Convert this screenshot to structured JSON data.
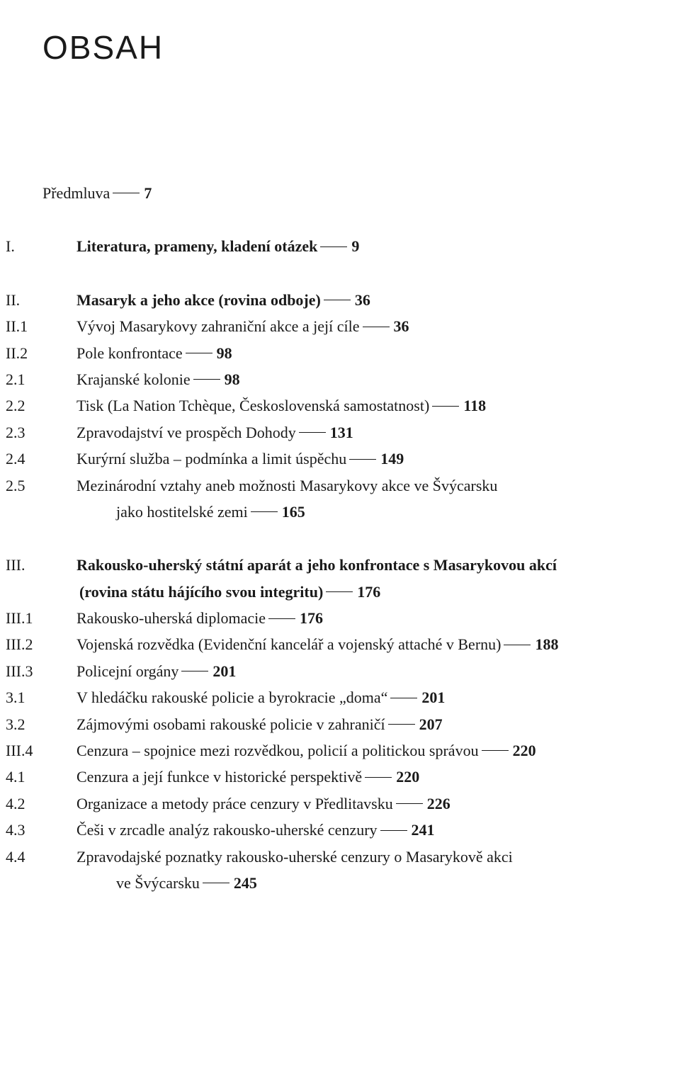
{
  "title": "OBSAH",
  "entries": [
    {
      "type": "line",
      "bold": false,
      "indent": 0,
      "num": "",
      "label": "Předmluva",
      "page": "7",
      "gapAfter": "large"
    },
    {
      "type": "line",
      "bold": true,
      "indent": 0,
      "num": "I.",
      "label": "Literatura, prameny, kladení otázek",
      "page": "9",
      "gapAfter": "large"
    },
    {
      "type": "line",
      "bold": true,
      "indent": 0,
      "num": "II.",
      "label": "Masaryk a jeho akce (rovina odboje)",
      "page": "36"
    },
    {
      "type": "line",
      "bold": false,
      "indent": 0,
      "num": "II.1",
      "label": "Vývoj Masarykovy zahraniční akce a její cíle",
      "page": "36"
    },
    {
      "type": "line",
      "bold": false,
      "indent": 0,
      "num": "II.2",
      "label": "Pole konfrontace",
      "page": "98"
    },
    {
      "type": "line",
      "bold": false,
      "indent": 1,
      "num": "2.1",
      "label": "Krajanské kolonie",
      "page": "98"
    },
    {
      "type": "line",
      "bold": false,
      "indent": 1,
      "num": "2.2",
      "label": "Tisk (La Nation Tchèque, Československá samostatnost)",
      "page": "118"
    },
    {
      "type": "line",
      "bold": false,
      "indent": 1,
      "num": "2.3",
      "label": "Zpravodajství ve prospěch Dohody",
      "page": "131"
    },
    {
      "type": "line",
      "bold": false,
      "indent": 1,
      "num": "2.4",
      "label": "Kurýrní služba – podmínka a limit úspěchu",
      "page": "149"
    },
    {
      "type": "wrap",
      "bold": false,
      "indent": 1,
      "num": "2.5",
      "label1": "Mezinárodní vztahy aneb možnosti Masarykovy akce ve Švýcarsku",
      "label2": "jako hostitelské zemi",
      "page": "165",
      "gapAfter": "large"
    },
    {
      "type": "wrapbold",
      "indent": 0,
      "num": "III.",
      "label1": "Rakousko-uherský státní aparát a jeho konfrontace s Masarykovou akcí",
      "label2": "(rovina státu hájícího svou integritu)",
      "page": "176"
    },
    {
      "type": "line",
      "bold": false,
      "indent": 0,
      "num": "III.1",
      "label": "Rakousko-uherská diplomacie",
      "page": "176"
    },
    {
      "type": "line",
      "bold": false,
      "indent": 0,
      "num": "III.2",
      "label": "Vojenská rozvědka (Evidenční kancelář a vojenský attaché v Bernu)",
      "page": "188"
    },
    {
      "type": "line",
      "bold": false,
      "indent": 0,
      "num": "III.3",
      "label": "Policejní orgány",
      "page": "201"
    },
    {
      "type": "line",
      "bold": false,
      "indent": 1,
      "num": "3.1",
      "label": "V hledáčku rakouské policie a byrokracie „doma“",
      "page": "201"
    },
    {
      "type": "line",
      "bold": false,
      "indent": 1,
      "num": "3.2",
      "label": "Zájmovými osobami rakouské policie v zahraničí",
      "page": "207"
    },
    {
      "type": "line",
      "bold": false,
      "indent": 0,
      "num": "III.4",
      "label": "Cenzura – spojnice mezi rozvědkou, policií a politickou správou",
      "page": "220"
    },
    {
      "type": "line",
      "bold": false,
      "indent": 1,
      "num": "4.1",
      "label": "Cenzura a její funkce v historické perspektivě",
      "page": "220"
    },
    {
      "type": "line",
      "bold": false,
      "indent": 1,
      "num": "4.2",
      "label": "Organizace a metody práce cenzury v Předlitavsku",
      "page": "226"
    },
    {
      "type": "line",
      "bold": false,
      "indent": 1,
      "num": "4.3",
      "label": "Češi v zrcadle analýz rakousko-uherské cenzury",
      "page": "241"
    },
    {
      "type": "wrap",
      "bold": false,
      "indent": 1,
      "num": "4.4",
      "label1": "Zpravodajské poznatky rakousko-uherské cenzury o Masarykově akci",
      "label2": "ve Švýcarsku",
      "page": "245"
    }
  ]
}
